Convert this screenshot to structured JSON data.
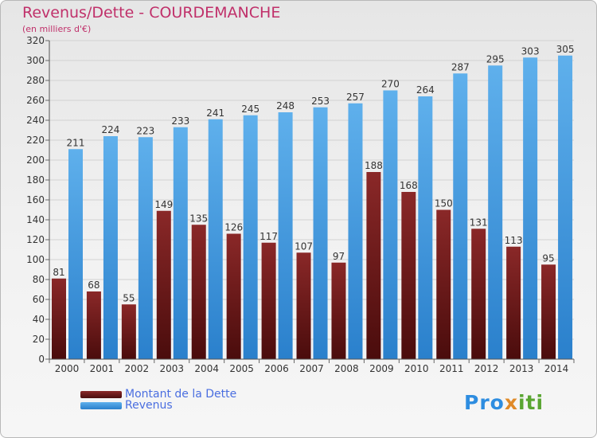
{
  "title": "Revenus/Dette - COURDEMANCHE",
  "subtitle": "(en milliers d'€)",
  "logo": {
    "text": "Proxiti",
    "part1": "Pro",
    "part2": "x",
    "part3": "iti"
  },
  "colors": {
    "dette": "#6e1d1d",
    "revenus": "#3d97e0",
    "title": "#c0306a",
    "legend_text": "#4a6ee0"
  },
  "chart_data": {
    "type": "bar",
    "title": "Revenus/Dette - COURDEMANCHE",
    "ylabel": "(en milliers d'€)",
    "categories": [
      "2000",
      "2001",
      "2002",
      "2003",
      "2004",
      "2005",
      "2006",
      "2007",
      "2008",
      "2009",
      "2010",
      "2011",
      "2012",
      "2013",
      "2014"
    ],
    "series": [
      {
        "name": "Montant de la Dette",
        "values": [
          81,
          68,
          55,
          149,
          135,
          126,
          117,
          107,
          97,
          188,
          168,
          150,
          131,
          113,
          95
        ]
      },
      {
        "name": "Revenus",
        "values": [
          211,
          224,
          223,
          233,
          241,
          245,
          248,
          253,
          257,
          270,
          264,
          287,
          295,
          303,
          305
        ]
      }
    ],
    "ylim": [
      0,
      320
    ],
    "yticks": [
      0,
      20,
      40,
      60,
      80,
      100,
      120,
      140,
      160,
      180,
      200,
      220,
      240,
      260,
      280,
      300,
      320
    ],
    "grid": true,
    "legend": "bottom-left"
  }
}
